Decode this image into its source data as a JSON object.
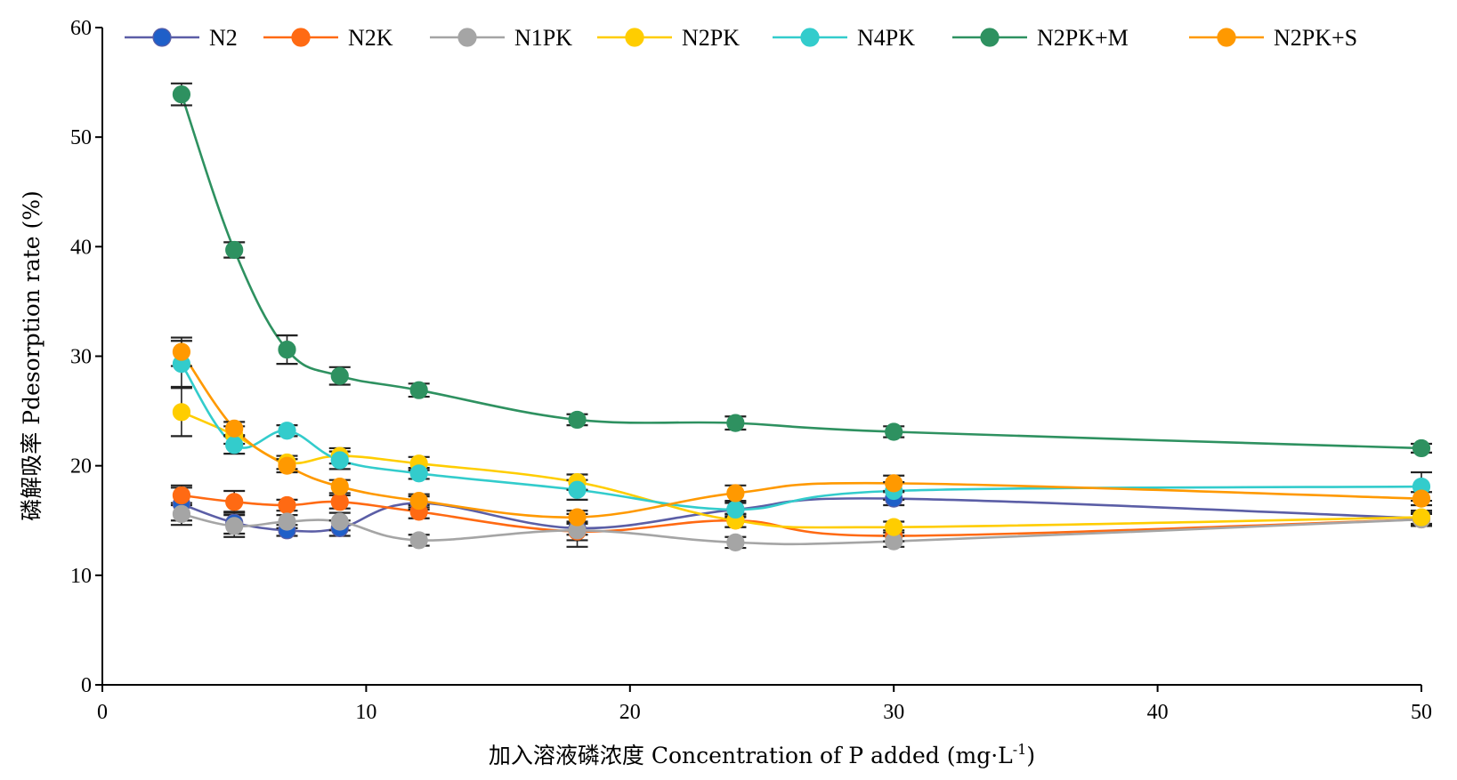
{
  "chart_data": {
    "type": "line",
    "xlabel": "加入溶液磷浓度 Concentration of P added (mg·L",
    "xlabel_sup": "-1",
    "xlabel_end": ")",
    "ylabel": "磷解吸率 Pdesorption rate (%)",
    "xlim": [
      0,
      50
    ],
    "ylim": [
      0,
      60
    ],
    "xticks": [
      "0",
      "10",
      "20",
      "30",
      "40",
      "50"
    ],
    "yticks": [
      "0",
      "10",
      "20",
      "30",
      "40",
      "50",
      "60"
    ],
    "legend_position": "top",
    "x": [
      3,
      5,
      7,
      9,
      12,
      18,
      24,
      30,
      50
    ],
    "series": [
      {
        "name": "N2",
        "color": "#5B5EA6",
        "marker": "#1F5FC8",
        "values": [
          16.5,
          14.8,
          14.1,
          14.3,
          16.6,
          14.3,
          16.0,
          17.0,
          15.2
        ],
        "errors": [
          1.5,
          1.0,
          0.5,
          0.7,
          0.6,
          0.6,
          0.6,
          0.6,
          0.7
        ]
      },
      {
        "name": "N2K",
        "color": "#FF6A13",
        "marker": "#FF6A13",
        "values": [
          17.3,
          16.7,
          16.4,
          16.7,
          15.8,
          14.0,
          15.0,
          13.6,
          15.1
        ],
        "errors": [
          0.9,
          1.0,
          0.5,
          0.6,
          0.6,
          0.8,
          0.6,
          0.5,
          0.6
        ]
      },
      {
        "name": "N1PK",
        "color": "#A5A5A5",
        "marker": "#A5A5A5",
        "values": [
          15.6,
          14.5,
          14.9,
          14.9,
          13.2,
          14.1,
          13.0,
          13.1,
          15.1
        ],
        "errors": [
          1.0,
          1.0,
          0.6,
          0.8,
          0.5,
          1.5,
          0.5,
          0.5,
          0.5
        ]
      },
      {
        "name": "N2PK",
        "color": "#FFCD00",
        "marker": "#FFCD00",
        "values": [
          24.9,
          22.8,
          20.3,
          20.9,
          20.2,
          18.5,
          15.0,
          14.4,
          15.3
        ],
        "errors": [
          2.2,
          0.8,
          0.6,
          0.7,
          0.6,
          0.7,
          0.6,
          0.5,
          0.6
        ]
      },
      {
        "name": "N4PK",
        "color": "#33CCCC",
        "marker": "#33CCCC",
        "values": [
          29.3,
          21.9,
          23.2,
          20.5,
          19.3,
          17.8,
          16.0,
          17.7,
          18.1
        ],
        "errors": [
          2.1,
          0.8,
          0.5,
          0.8,
          0.5,
          0.9,
          0.7,
          0.8,
          1.3
        ]
      },
      {
        "name": "N2PK+M",
        "color": "#2E9160",
        "marker": "#2E9160",
        "values": [
          53.9,
          39.7,
          30.6,
          28.2,
          26.9,
          24.2,
          23.9,
          23.1,
          21.6
        ],
        "errors": [
          1.0,
          0.7,
          1.3,
          0.8,
          0.6,
          0.5,
          0.6,
          0.5,
          0.4
        ]
      },
      {
        "name": "N2PK+S",
        "color": "#FF9900",
        "marker": "#FF9900",
        "values": [
          30.4,
          23.4,
          20.0,
          18.1,
          16.8,
          15.3,
          17.5,
          18.4,
          17.0
        ],
        "errors": [
          1.3,
          0.6,
          0.6,
          0.6,
          0.6,
          0.6,
          0.7,
          0.7,
          0.6
        ]
      }
    ]
  }
}
